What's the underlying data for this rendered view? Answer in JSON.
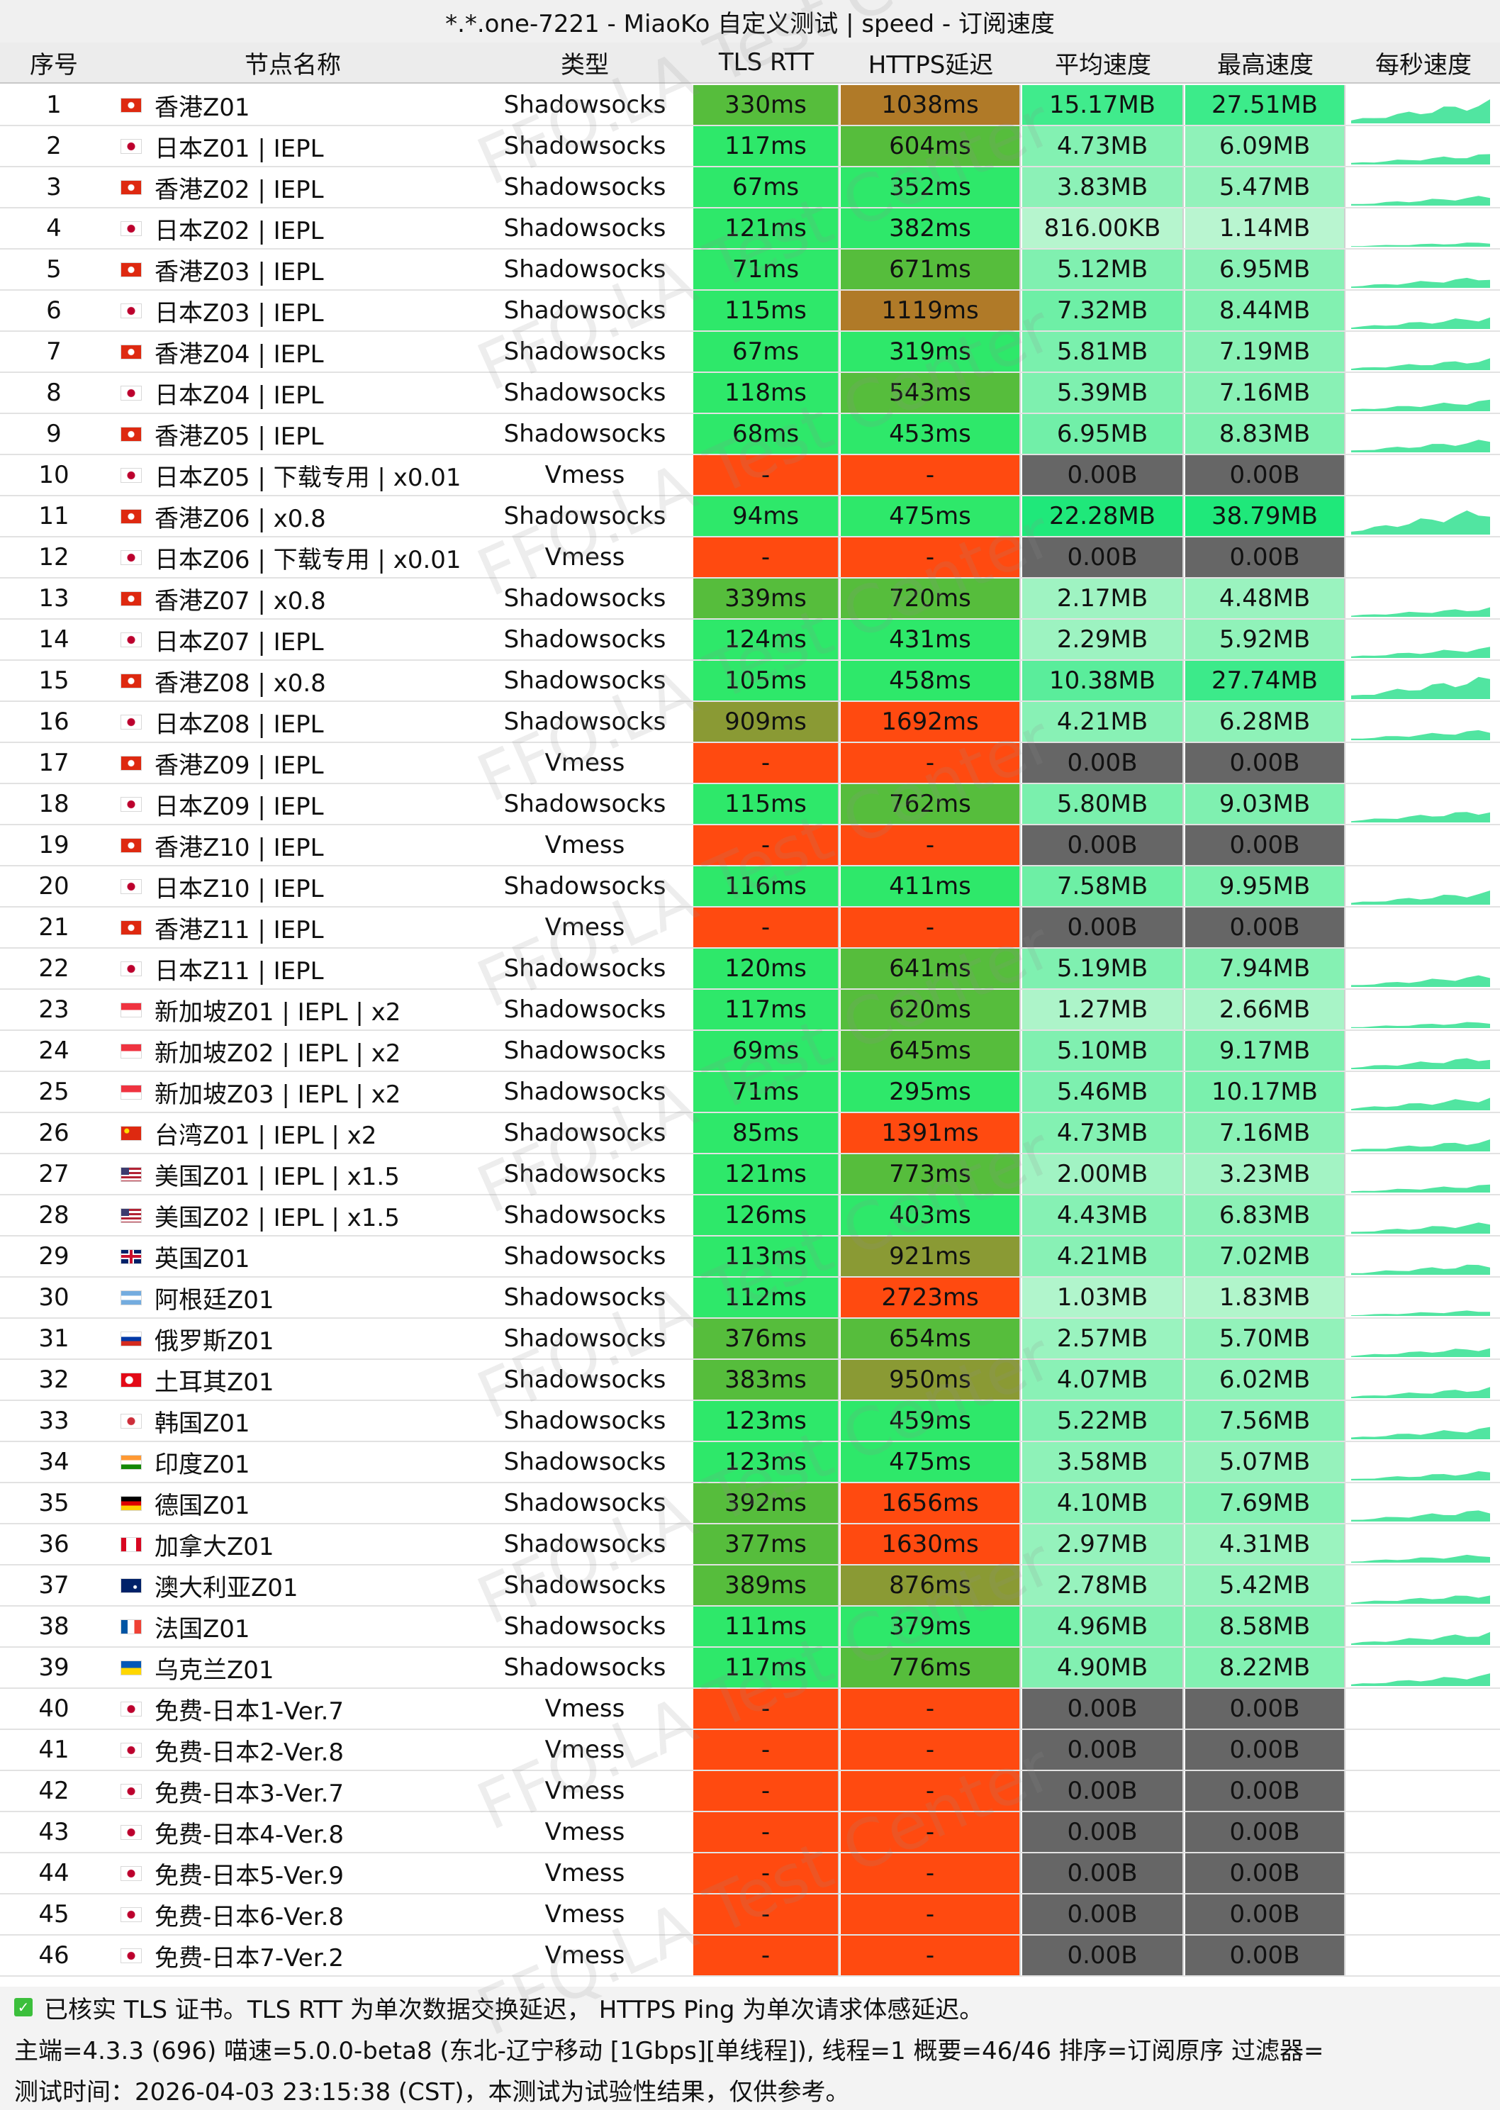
{
  "title": "*.*.one-7221 - MiaoKo 自定义测试 | speed - 订阅速度",
  "columns": [
    "序号",
    "节点名称",
    "类型",
    "TLS RTT",
    "HTTPS延迟",
    "平均速度",
    "最高速度",
    "每秒速度"
  ],
  "watermark": "FFQ.LA Test Center",
  "colors": {
    "fail": "#ff4a10",
    "zero_speed": "#666666",
    "latency_good": "#2ee86a",
    "latency_mid": "#56bd3c",
    "latency_slow": "#8a9a34",
    "latency_bad": "#b07a28",
    "speed_low": "#d9f8e2",
    "speed_high": "#1fe87a",
    "spark": "#33e090"
  },
  "rows": [
    {
      "idx": "1",
      "flag": "hk-flag-icon",
      "name": "香港Z01",
      "type": "Shadowsocks",
      "tls": "330ms",
      "https": "1038ms",
      "avg": "15.17MB",
      "max": "27.51MB"
    },
    {
      "idx": "2",
      "flag": "jp-flag-icon",
      "name": "日本Z01 | IEPL",
      "type": "Shadowsocks",
      "tls": "117ms",
      "https": "604ms",
      "avg": "4.73MB",
      "max": "6.09MB"
    },
    {
      "idx": "3",
      "flag": "hk-flag-icon",
      "name": "香港Z02 | IEPL",
      "type": "Shadowsocks",
      "tls": "67ms",
      "https": "352ms",
      "avg": "3.83MB",
      "max": "5.47MB"
    },
    {
      "idx": "4",
      "flag": "jp-flag-icon",
      "name": "日本Z02 | IEPL",
      "type": "Shadowsocks",
      "tls": "121ms",
      "https": "382ms",
      "avg": "816.00KB",
      "max": "1.14MB"
    },
    {
      "idx": "5",
      "flag": "hk-flag-icon",
      "name": "香港Z03 | IEPL",
      "type": "Shadowsocks",
      "tls": "71ms",
      "https": "671ms",
      "avg": "5.12MB",
      "max": "6.95MB"
    },
    {
      "idx": "6",
      "flag": "jp-flag-icon",
      "name": "日本Z03 | IEPL",
      "type": "Shadowsocks",
      "tls": "115ms",
      "https": "1119ms",
      "avg": "7.32MB",
      "max": "8.44MB"
    },
    {
      "idx": "7",
      "flag": "hk-flag-icon",
      "name": "香港Z04 | IEPL",
      "type": "Shadowsocks",
      "tls": "67ms",
      "https": "319ms",
      "avg": "5.81MB",
      "max": "7.19MB"
    },
    {
      "idx": "8",
      "flag": "jp-flag-icon",
      "name": "日本Z04 | IEPL",
      "type": "Shadowsocks",
      "tls": "118ms",
      "https": "543ms",
      "avg": "5.39MB",
      "max": "7.16MB"
    },
    {
      "idx": "9",
      "flag": "hk-flag-icon",
      "name": "香港Z05 | IEPL",
      "type": "Shadowsocks",
      "tls": "68ms",
      "https": "453ms",
      "avg": "6.95MB",
      "max": "8.83MB"
    },
    {
      "idx": "10",
      "flag": "jp-flag-icon",
      "name": "日本Z05 | 下载专用 | x0.01",
      "type": "Vmess",
      "tls": "-",
      "https": "-",
      "avg": "0.00B",
      "max": "0.00B"
    },
    {
      "idx": "11",
      "flag": "hk-flag-icon",
      "name": "香港Z06 | x0.8",
      "type": "Shadowsocks",
      "tls": "94ms",
      "https": "475ms",
      "avg": "22.28MB",
      "max": "38.79MB"
    },
    {
      "idx": "12",
      "flag": "jp-flag-icon",
      "name": "日本Z06 | 下载专用 | x0.01",
      "type": "Vmess",
      "tls": "-",
      "https": "-",
      "avg": "0.00B",
      "max": "0.00B"
    },
    {
      "idx": "13",
      "flag": "hk-flag-icon",
      "name": "香港Z07 | x0.8",
      "type": "Shadowsocks",
      "tls": "339ms",
      "https": "720ms",
      "avg": "2.17MB",
      "max": "4.48MB"
    },
    {
      "idx": "14",
      "flag": "jp-flag-icon",
      "name": "日本Z07 | IEPL",
      "type": "Shadowsocks",
      "tls": "124ms",
      "https": "431ms",
      "avg": "2.29MB",
      "max": "5.92MB"
    },
    {
      "idx": "15",
      "flag": "hk-flag-icon",
      "name": "香港Z08 | x0.8",
      "type": "Shadowsocks",
      "tls": "105ms",
      "https": "458ms",
      "avg": "10.38MB",
      "max": "27.74MB"
    },
    {
      "idx": "16",
      "flag": "jp-flag-icon",
      "name": "日本Z08 | IEPL",
      "type": "Shadowsocks",
      "tls": "909ms",
      "https": "1692ms",
      "avg": "4.21MB",
      "max": "6.28MB"
    },
    {
      "idx": "17",
      "flag": "hk-flag-icon",
      "name": "香港Z09 | IEPL",
      "type": "Vmess",
      "tls": "-",
      "https": "-",
      "avg": "0.00B",
      "max": "0.00B"
    },
    {
      "idx": "18",
      "flag": "jp-flag-icon",
      "name": "日本Z09 | IEPL",
      "type": "Shadowsocks",
      "tls": "115ms",
      "https": "762ms",
      "avg": "5.80MB",
      "max": "9.03MB"
    },
    {
      "idx": "19",
      "flag": "hk-flag-icon",
      "name": "香港Z10 | IEPL",
      "type": "Vmess",
      "tls": "-",
      "https": "-",
      "avg": "0.00B",
      "max": "0.00B"
    },
    {
      "idx": "20",
      "flag": "jp-flag-icon",
      "name": "日本Z10 | IEPL",
      "type": "Shadowsocks",
      "tls": "116ms",
      "https": "411ms",
      "avg": "7.58MB",
      "max": "9.95MB"
    },
    {
      "idx": "21",
      "flag": "hk-flag-icon",
      "name": "香港Z11 | IEPL",
      "type": "Vmess",
      "tls": "-",
      "https": "-",
      "avg": "0.00B",
      "max": "0.00B"
    },
    {
      "idx": "22",
      "flag": "jp-flag-icon",
      "name": "日本Z11 | IEPL",
      "type": "Shadowsocks",
      "tls": "120ms",
      "https": "641ms",
      "avg": "5.19MB",
      "max": "7.94MB"
    },
    {
      "idx": "23",
      "flag": "sg-flag-icon",
      "name": "新加坡Z01 | IEPL | x2",
      "type": "Shadowsocks",
      "tls": "117ms",
      "https": "620ms",
      "avg": "1.27MB",
      "max": "2.66MB"
    },
    {
      "idx": "24",
      "flag": "sg-flag-icon",
      "name": "新加坡Z02 | IEPL | x2",
      "type": "Shadowsocks",
      "tls": "69ms",
      "https": "645ms",
      "avg": "5.10MB",
      "max": "9.17MB"
    },
    {
      "idx": "25",
      "flag": "sg-flag-icon",
      "name": "新加坡Z03 | IEPL | x2",
      "type": "Shadowsocks",
      "tls": "71ms",
      "https": "295ms",
      "avg": "5.46MB",
      "max": "10.17MB"
    },
    {
      "idx": "26",
      "flag": "cn-flag-icon",
      "name": "台湾Z01 | IEPL | x2",
      "type": "Shadowsocks",
      "tls": "85ms",
      "https": "1391ms",
      "avg": "4.73MB",
      "max": "7.16MB"
    },
    {
      "idx": "27",
      "flag": "us-flag-icon",
      "name": "美国Z01 | IEPL | x1.5",
      "type": "Shadowsocks",
      "tls": "121ms",
      "https": "773ms",
      "avg": "2.00MB",
      "max": "3.23MB"
    },
    {
      "idx": "28",
      "flag": "us-flag-icon",
      "name": "美国Z02 | IEPL | x1.5",
      "type": "Shadowsocks",
      "tls": "126ms",
      "https": "403ms",
      "avg": "4.43MB",
      "max": "6.83MB"
    },
    {
      "idx": "29",
      "flag": "gb-flag-icon",
      "name": "英国Z01",
      "type": "Shadowsocks",
      "tls": "113ms",
      "https": "921ms",
      "avg": "4.21MB",
      "max": "7.02MB"
    },
    {
      "idx": "30",
      "flag": "ar-flag-icon",
      "name": "阿根廷Z01",
      "type": "Shadowsocks",
      "tls": "112ms",
      "https": "2723ms",
      "avg": "1.03MB",
      "max": "1.83MB"
    },
    {
      "idx": "31",
      "flag": "ru-flag-icon",
      "name": "俄罗斯Z01",
      "type": "Shadowsocks",
      "tls": "376ms",
      "https": "654ms",
      "avg": "2.57MB",
      "max": "5.70MB"
    },
    {
      "idx": "32",
      "flag": "tr-flag-icon",
      "name": "土耳其Z01",
      "type": "Shadowsocks",
      "tls": "383ms",
      "https": "950ms",
      "avg": "4.07MB",
      "max": "6.02MB"
    },
    {
      "idx": "33",
      "flag": "kr-flag-icon",
      "name": "韩国Z01",
      "type": "Shadowsocks",
      "tls": "123ms",
      "https": "459ms",
      "avg": "5.22MB",
      "max": "7.56MB"
    },
    {
      "idx": "34",
      "flag": "in-flag-icon",
      "name": "印度Z01",
      "type": "Shadowsocks",
      "tls": "123ms",
      "https": "475ms",
      "avg": "3.58MB",
      "max": "5.07MB"
    },
    {
      "idx": "35",
      "flag": "de-flag-icon",
      "name": "德国Z01",
      "type": "Shadowsocks",
      "tls": "392ms",
      "https": "1656ms",
      "avg": "4.10MB",
      "max": "7.69MB"
    },
    {
      "idx": "36",
      "flag": "ca-flag-icon",
      "name": "加拿大Z01",
      "type": "Shadowsocks",
      "tls": "377ms",
      "https": "1630ms",
      "avg": "2.97MB",
      "max": "4.31MB"
    },
    {
      "idx": "37",
      "flag": "au-flag-icon",
      "name": "澳大利亚Z01",
      "type": "Shadowsocks",
      "tls": "389ms",
      "https": "876ms",
      "avg": "2.78MB",
      "max": "5.42MB"
    },
    {
      "idx": "38",
      "flag": "fr-flag-icon",
      "name": "法国Z01",
      "type": "Shadowsocks",
      "tls": "111ms",
      "https": "379ms",
      "avg": "4.96MB",
      "max": "8.58MB"
    },
    {
      "idx": "39",
      "flag": "ua-flag-icon",
      "name": "乌克兰Z01",
      "type": "Shadowsocks",
      "tls": "117ms",
      "https": "776ms",
      "avg": "4.90MB",
      "max": "8.22MB"
    },
    {
      "idx": "40",
      "flag": "jp-flag-icon",
      "name": "免费-日本1-Ver.7",
      "type": "Vmess",
      "tls": "-",
      "https": "-",
      "avg": "0.00B",
      "max": "0.00B"
    },
    {
      "idx": "41",
      "flag": "jp-flag-icon",
      "name": "免费-日本2-Ver.8",
      "type": "Vmess",
      "tls": "-",
      "https": "-",
      "avg": "0.00B",
      "max": "0.00B"
    },
    {
      "idx": "42",
      "flag": "jp-flag-icon",
      "name": "免费-日本3-Ver.7",
      "type": "Vmess",
      "tls": "-",
      "https": "-",
      "avg": "0.00B",
      "max": "0.00B"
    },
    {
      "idx": "43",
      "flag": "jp-flag-icon",
      "name": "免费-日本4-Ver.8",
      "type": "Vmess",
      "tls": "-",
      "https": "-",
      "avg": "0.00B",
      "max": "0.00B"
    },
    {
      "idx": "44",
      "flag": "jp-flag-icon",
      "name": "免费-日本5-Ver.9",
      "type": "Vmess",
      "tls": "-",
      "https": "-",
      "avg": "0.00B",
      "max": "0.00B"
    },
    {
      "idx": "45",
      "flag": "jp-flag-icon",
      "name": "免费-日本6-Ver.8",
      "type": "Vmess",
      "tls": "-",
      "https": "-",
      "avg": "0.00B",
      "max": "0.00B"
    },
    {
      "idx": "46",
      "flag": "jp-flag-icon",
      "name": "免费-日本7-Ver.2",
      "type": "Vmess",
      "tls": "-",
      "https": "-",
      "avg": "0.00B",
      "max": "0.00B"
    }
  ],
  "footer": {
    "line1": "已核实 TLS 证书。TLS RTT 为单次数据交换延迟， HTTPS Ping 为单次请求体感延迟。",
    "line2": "主端=4.3.3 (696) 喵速=5.0.0-beta8 (东北-辽宁移动 [1Gbps][单线程]), 线程=1 概要=46/46 排序=订阅原序 过滤器=",
    "line3": "测试时间：2026-04-03 23:15:38 (CST)，本测试为试验性结果，仅供参考。"
  }
}
